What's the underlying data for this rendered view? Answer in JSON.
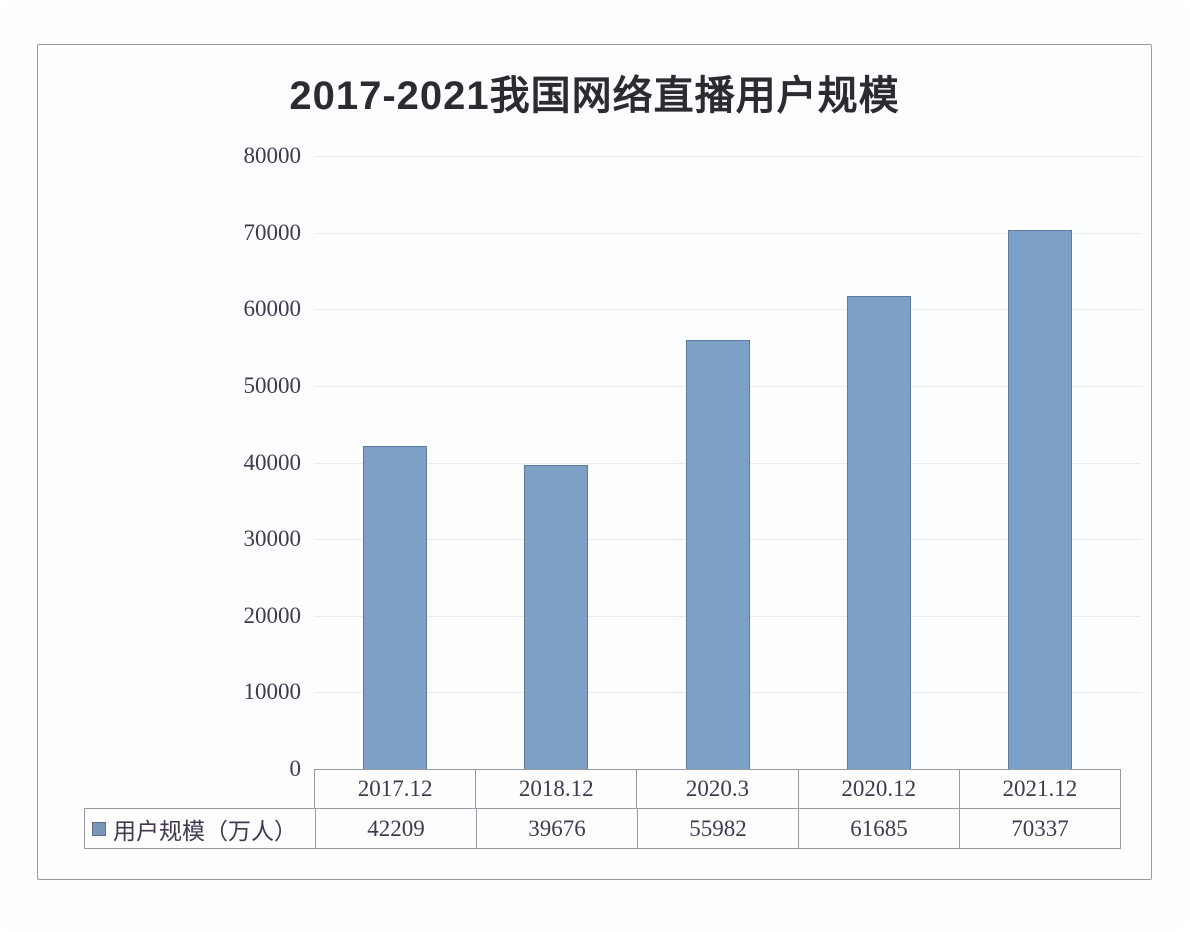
{
  "title": "2017-2021我国网络直播用户规模",
  "legend": {
    "label": "用户规模（万人）"
  },
  "chart_data": {
    "type": "bar",
    "title": "2017-2021我国网络直播用户规模",
    "categories": [
      "2017.12",
      "2018.12",
      "2020.3",
      "2020.12",
      "2021.12"
    ],
    "series": [
      {
        "name": "用户规模（万人）",
        "values": [
          42209,
          39676,
          55982,
          61685,
          70337
        ]
      }
    ],
    "xlabel": "",
    "ylabel": "",
    "ylim": [
      0,
      80000
    ],
    "ytick_step": 10000,
    "yticks": [
      80000,
      70000,
      60000,
      50000,
      40000,
      30000,
      20000,
      10000,
      0
    ],
    "grid": true,
    "legend_position": "bottom-table",
    "colors": {
      "bar": "#7da0c6",
      "bar_border": "#5e7c99",
      "text": "#43394e",
      "title": "#2c2b31",
      "table_border": "#979ca3",
      "gridline": "#e9ebee",
      "legend_swatch": "#7b96b6"
    }
  }
}
